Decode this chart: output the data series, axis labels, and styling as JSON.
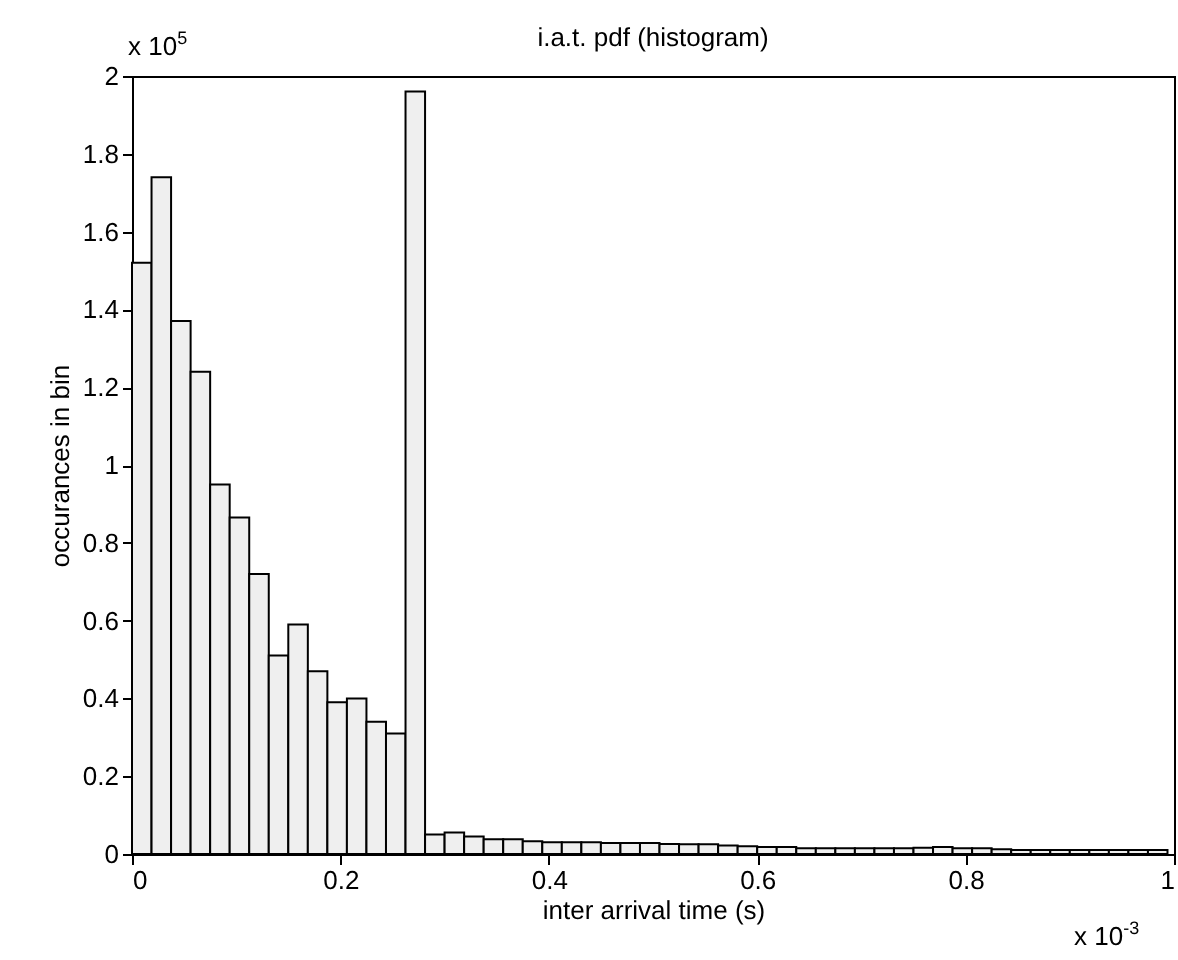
{
  "chart_data": {
    "type": "histogram",
    "title": "i.a.t. pdf (histogram)",
    "xlabel": "inter arrival time (s)",
    "ylabel": "occurances in bin",
    "bins": [
      0,
      0.01875,
      0.0375,
      0.05625,
      0.075,
      0.09375,
      0.1125,
      0.13125,
      0.15,
      0.16875,
      0.1875,
      0.20625,
      0.225,
      0.24375,
      0.2625,
      0.28125,
      0.3,
      0.31875,
      0.3375,
      0.35625,
      0.375,
      0.39375,
      0.4125,
      0.43125,
      0.45,
      0.46875,
      0.4875,
      0.50625,
      0.525,
      0.54375,
      0.5625,
      0.58125,
      0.6,
      0.61875,
      0.6375,
      0.65625,
      0.675,
      0.69375,
      0.7125,
      0.73125,
      0.75,
      0.76875,
      0.7875,
      0.80625,
      0.825,
      0.84375,
      0.8625,
      0.88125,
      0.9,
      0.91875,
      0.9375,
      0.95625,
      0.975,
      0.99375
    ],
    "values": [
      1.52,
      1.74,
      1.37,
      1.24,
      0.95,
      0.865,
      0.72,
      0.51,
      0.59,
      0.47,
      0.39,
      0.4,
      0.34,
      0.31,
      1.96,
      0.05,
      0.055,
      0.045,
      0.038,
      0.038,
      0.033,
      0.03,
      0.03,
      0.03,
      0.028,
      0.028,
      0.028,
      0.026,
      0.025,
      0.025,
      0.022,
      0.02,
      0.018,
      0.018,
      0.015,
      0.015,
      0.015,
      0.015,
      0.015,
      0.015,
      0.016,
      0.018,
      0.015,
      0.015,
      0.012,
      0.01,
      0.01,
      0.01,
      0.01,
      0.01,
      0.01,
      0.01,
      0.01
    ],
    "color": "#efefef",
    "xlim": [
      0,
      1
    ],
    "xticks": [
      0,
      0.2,
      0.4,
      0.6,
      0.8,
      1
    ],
    "ylim": [
      0,
      2
    ],
    "yticks": [
      0,
      0.2,
      0.4,
      0.6,
      0.8,
      1,
      1.2,
      1.4,
      1.6,
      1.8,
      2
    ],
    "annotations": [
      "x 10$^{5}$",
      "x 10$^{-3}$"
    ]
  }
}
